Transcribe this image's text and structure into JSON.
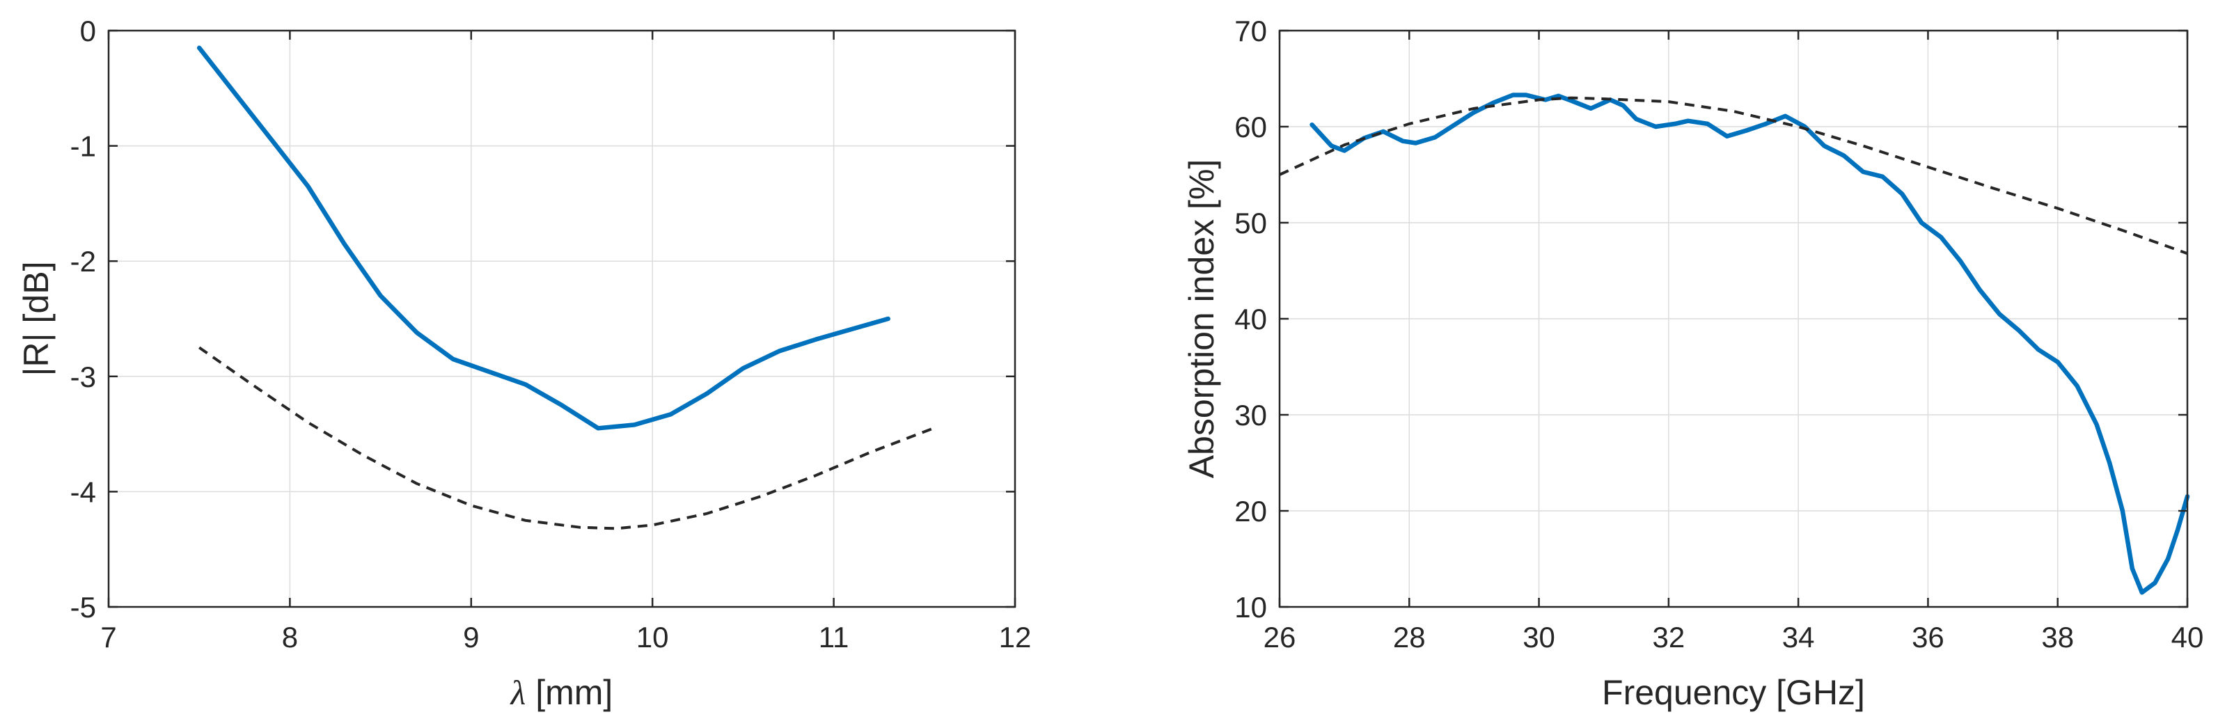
{
  "chart_data": [
    {
      "type": "line",
      "xlabel_symbol": "λ",
      "xlabel_rest": " [mm]",
      "ylabel": "|R| [dB]",
      "xlim": [
        7,
        12
      ],
      "ylim": [
        -5,
        0
      ],
      "xticks": [
        7,
        8,
        9,
        10,
        11,
        12
      ],
      "yticks": [
        0,
        -1,
        -2,
        -3,
        -4,
        -5
      ],
      "xtick_labels": [
        "7",
        "8",
        "9",
        "10",
        "11",
        "12"
      ],
      "ytick_labels": [
        "0",
        "-1",
        "-2",
        "-3",
        "-4",
        "-5"
      ],
      "grid": true,
      "series": [
        {
          "color": "#0072BD",
          "style": "solid",
          "x": [
            7.5,
            7.7,
            7.9,
            8.1,
            8.3,
            8.5,
            8.7,
            8.9,
            9.1,
            9.3,
            9.5,
            9.7,
            9.9,
            10.1,
            10.3,
            10.5,
            10.7,
            10.9,
            11.1,
            11.3
          ],
          "y": [
            -0.15,
            -0.55,
            -0.95,
            -1.35,
            -1.85,
            -2.3,
            -2.62,
            -2.85,
            -2.96,
            -3.07,
            -3.25,
            -3.45,
            -3.42,
            -3.33,
            -3.15,
            -2.93,
            -2.78,
            -2.68,
            -2.59,
            -2.5
          ]
        },
        {
          "color": "#262626",
          "style": "dashed",
          "x": [
            7.5,
            7.8,
            8.1,
            8.4,
            8.7,
            9.0,
            9.3,
            9.6,
            9.8,
            10.0,
            10.3,
            10.6,
            10.9,
            11.2,
            11.55
          ],
          "y": [
            -2.75,
            -3.08,
            -3.4,
            -3.68,
            -3.93,
            -4.12,
            -4.25,
            -4.31,
            -4.32,
            -4.29,
            -4.19,
            -4.04,
            -3.86,
            -3.66,
            -3.45
          ]
        }
      ]
    },
    {
      "type": "line",
      "xlabel": "Frequency [GHz]",
      "ylabel": "Absorption index [%]",
      "xlim": [
        26,
        40
      ],
      "ylim": [
        10,
        70
      ],
      "xticks": [
        26,
        28,
        30,
        32,
        34,
        36,
        38,
        40
      ],
      "yticks": [
        70,
        60,
        50,
        40,
        30,
        20,
        10
      ],
      "xtick_labels": [
        "26",
        "28",
        "30",
        "32",
        "34",
        "36",
        "38",
        "40"
      ],
      "ytick_labels": [
        "70",
        "60",
        "50",
        "40",
        "30",
        "20",
        "10"
      ],
      "grid": true,
      "series": [
        {
          "color": "#0072BD",
          "style": "solid",
          "x": [
            26.5,
            26.8,
            27.0,
            27.3,
            27.6,
            27.9,
            28.1,
            28.4,
            28.7,
            29.0,
            29.3,
            29.6,
            29.8,
            30.1,
            30.3,
            30.5,
            30.8,
            31.1,
            31.3,
            31.5,
            31.8,
            32.1,
            32.3,
            32.6,
            32.9,
            33.2,
            33.5,
            33.8,
            34.1,
            34.4,
            34.7,
            35.0,
            35.3,
            35.6,
            35.9,
            36.2,
            36.5,
            36.8,
            37.1,
            37.4,
            37.7,
            38.0,
            38.3,
            38.6,
            38.8,
            39.0,
            39.15,
            39.3,
            39.5,
            39.7,
            39.85,
            40.0
          ],
          "y": [
            60.2,
            58.0,
            57.5,
            58.8,
            59.5,
            58.5,
            58.3,
            58.9,
            60.2,
            61.5,
            62.5,
            63.3,
            63.3,
            62.8,
            63.2,
            62.7,
            61.9,
            62.8,
            62.2,
            60.8,
            60.0,
            60.3,
            60.6,
            60.3,
            59.0,
            59.6,
            60.3,
            61.1,
            60.0,
            58.0,
            57.0,
            55.3,
            54.8,
            53.0,
            50.0,
            48.5,
            46.0,
            43.0,
            40.5,
            38.8,
            36.8,
            35.5,
            33.0,
            29.0,
            25.0,
            20.0,
            14.0,
            11.5,
            12.5,
            15.0,
            18.0,
            21.5
          ]
        },
        {
          "color": "#262626",
          "style": "dashed",
          "x": [
            26.0,
            27.0,
            28.0,
            29.0,
            30.0,
            30.5,
            31.0,
            32.0,
            33.0,
            34.0,
            35.0,
            36.0,
            37.0,
            38.0,
            39.0,
            40.0
          ],
          "y": [
            55.0,
            58.1,
            60.3,
            61.9,
            62.8,
            63.0,
            62.9,
            62.6,
            61.6,
            60.0,
            58.0,
            55.8,
            53.6,
            51.5,
            49.2,
            46.8
          ]
        }
      ]
    }
  ]
}
